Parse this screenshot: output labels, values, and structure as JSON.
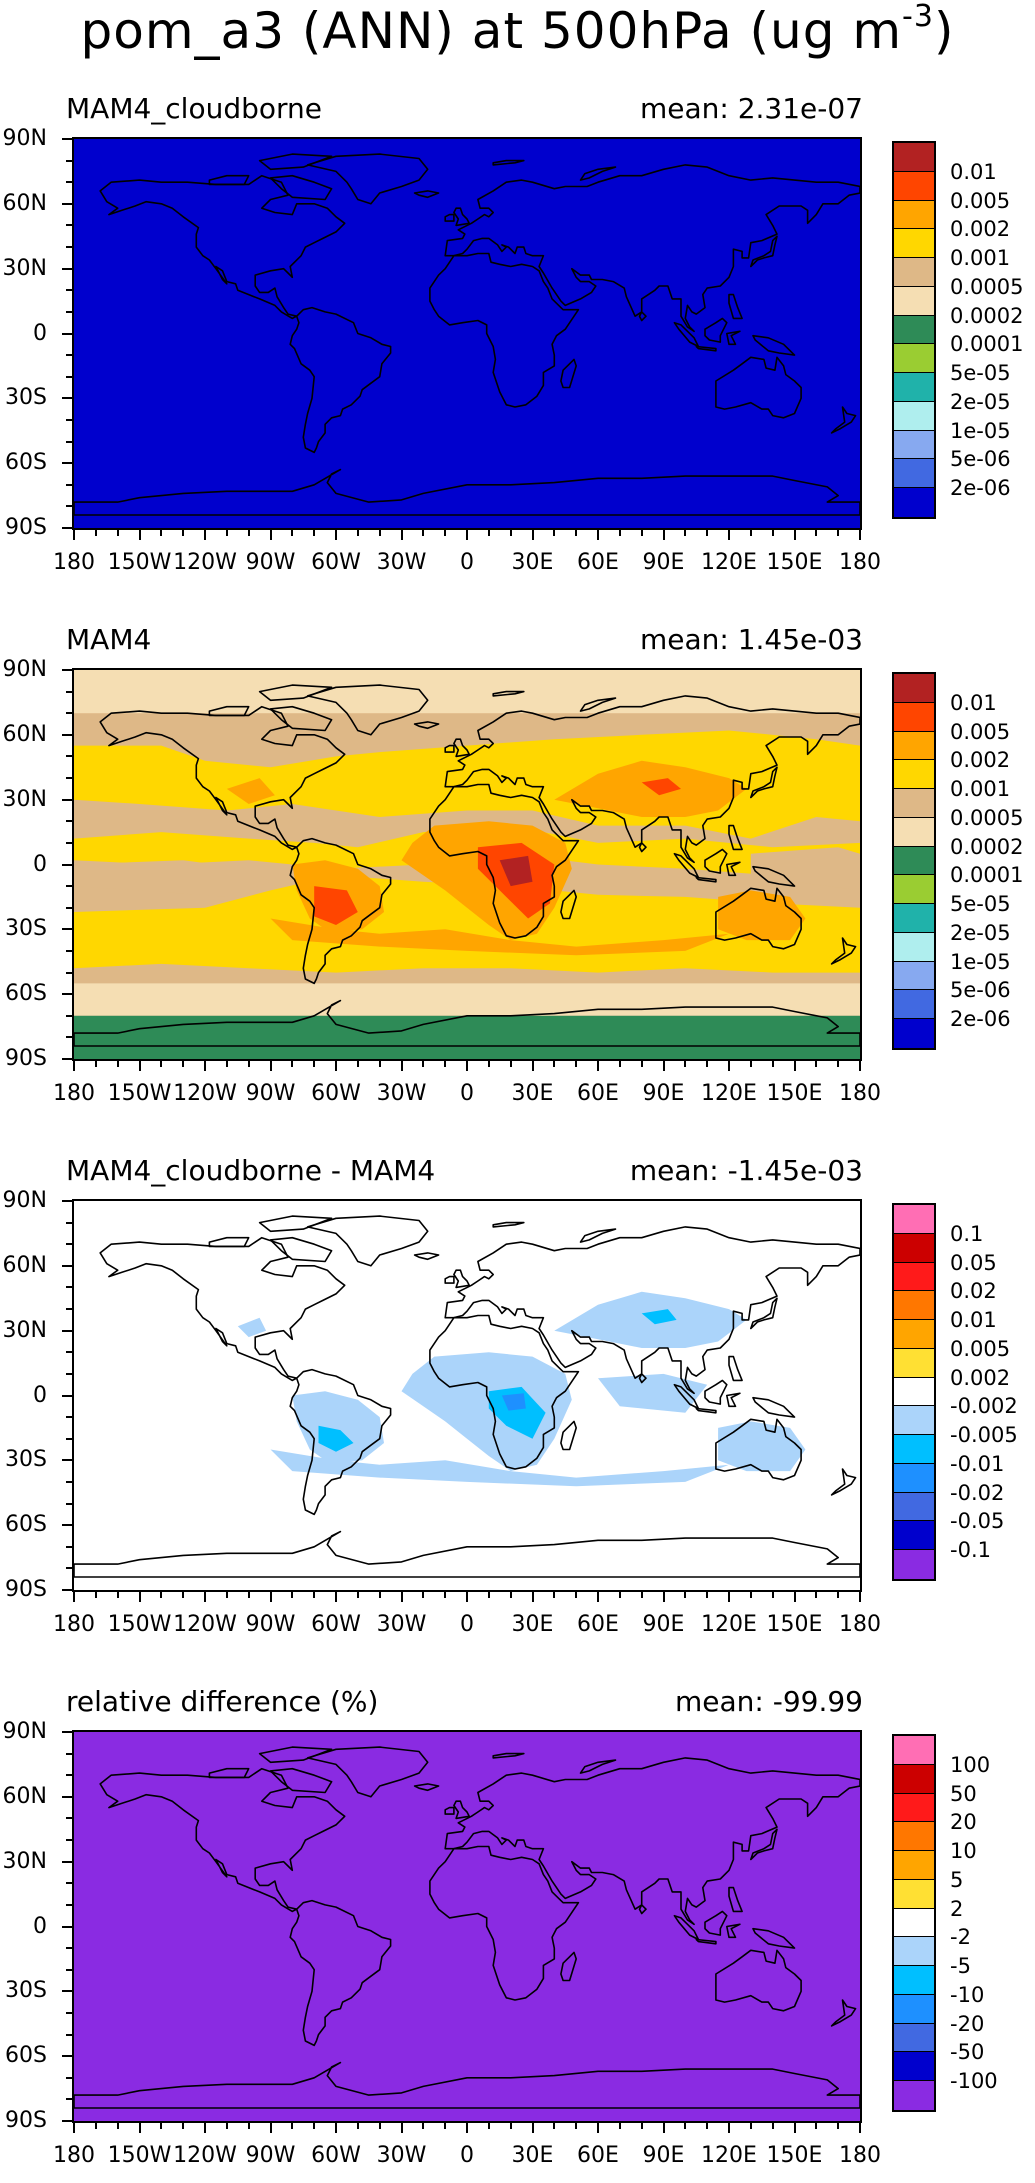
{
  "title": {
    "main": "pom_a3 (ANN) at 500hPa (ug m",
    "sup": "-3",
    "close": ")"
  },
  "lat_labels": [
    "90N",
    "60N",
    "30N",
    "0",
    "30S",
    "60S",
    "90S"
  ],
  "lon_labels": [
    "180",
    "150W",
    "120W",
    "90W",
    "60W",
    "30W",
    "0",
    "30E",
    "60E",
    "90E",
    "120E",
    "150E",
    "180"
  ],
  "palettes": {
    "abs": {
      "colors": [
        "#b22222",
        "#ff4500",
        "#ffa500",
        "#ffd700",
        "#deb887",
        "#f5deb3",
        "#2e8b57",
        "#9acd32",
        "#20b2aa",
        "#afeeee",
        "#87a9f0",
        "#4169e1",
        "#0000cd"
      ],
      "labels": [
        "0.01",
        "0.005",
        "0.002",
        "0.001",
        "0.0005",
        "0.0002",
        "0.0001",
        "5e-05",
        "2e-05",
        "1e-05",
        "5e-06",
        "2e-06"
      ]
    },
    "diff": {
      "colors": [
        "#ff6eb4",
        "#cc0000",
        "#ff1a1a",
        "#ff7700",
        "#ffa500",
        "#ffe033",
        "#ffffff",
        "#abd4fa",
        "#00bfff",
        "#1e90ff",
        "#4169e1",
        "#0000cd",
        "#8a2be2"
      ],
      "labels": [
        "0.1",
        "0.05",
        "0.02",
        "0.01",
        "0.005",
        "0.002",
        "-0.002",
        "-0.005",
        "-0.01",
        "-0.02",
        "-0.05",
        "-0.1"
      ]
    },
    "rel": {
      "colors": [
        "#ff6eb4",
        "#cc0000",
        "#ff1a1a",
        "#ff7700",
        "#ffa500",
        "#ffe033",
        "#ffffff",
        "#abd4fa",
        "#00bfff",
        "#1e90ff",
        "#4169e1",
        "#0000cd",
        "#8a2be2"
      ],
      "labels": [
        "100",
        "50",
        "20",
        "10",
        "5",
        "2",
        "-2",
        "-5",
        "-10",
        "-20",
        "-50",
        "-100"
      ]
    }
  },
  "panels": [
    {
      "id": "p1",
      "left_title": "MAM4_cloudborne",
      "right_title": "mean: 2.31e-07",
      "palette": "abs",
      "fill": "uniform_low"
    },
    {
      "id": "p2",
      "left_title": "MAM4",
      "right_title": "mean: 1.45e-03",
      "palette": "abs",
      "fill": "concentration"
    },
    {
      "id": "p3",
      "left_title": "MAM4_cloudborne - MAM4",
      "right_title": "mean: -1.45e-03",
      "palette": "diff",
      "fill": "difference"
    },
    {
      "id": "p4",
      "left_title": "relative difference (%)",
      "right_title": "mean: -99.99",
      "palette": "rel",
      "fill": "uniform_low"
    }
  ]
}
